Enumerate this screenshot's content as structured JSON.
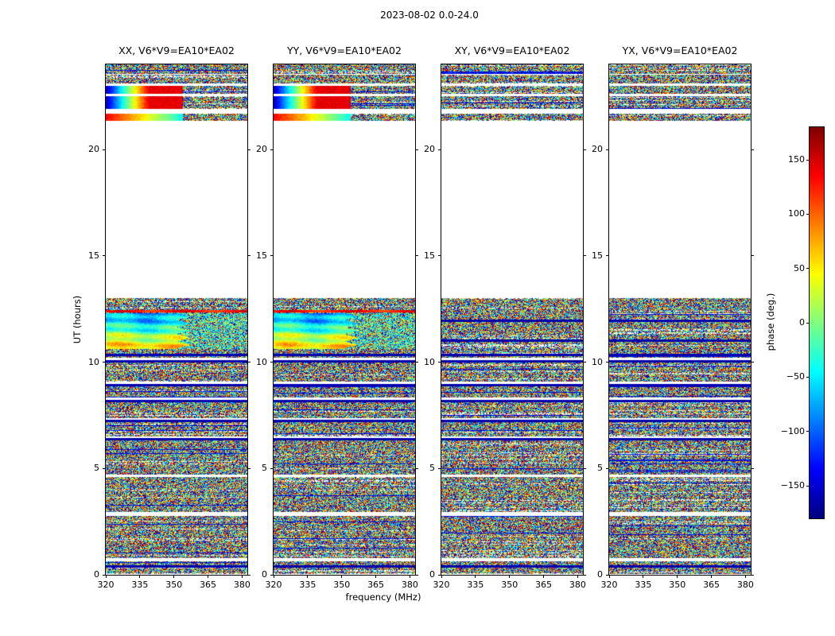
{
  "title": "2023-08-02 0.0-24.0",
  "xlabel": "frequency (MHz)",
  "ylabel": "UT (hours)",
  "panels": [
    {
      "title": "XX, V6*V9=EA10*EA02"
    },
    {
      "title": "YY, V6*V9=EA10*EA02"
    },
    {
      "title": "XY, V6*V9=EA10*EA02"
    },
    {
      "title": "YX, V6*V9=EA10*EA02"
    }
  ],
  "x_ticks": [
    320,
    335,
    350,
    365,
    380
  ],
  "y_ticks": [
    0,
    5,
    10,
    15,
    20
  ],
  "colorbar": {
    "label": "phase (deg.)",
    "ticks": [
      150,
      100,
      50,
      0,
      -50,
      -100,
      -150
    ],
    "vmin": -180,
    "vmax": 180
  },
  "chart_data": {
    "type": "heatmap",
    "title": "2023-08-02 0.0-24.0",
    "xlabel": "frequency (MHz)",
    "ylabel": "UT (hours)",
    "x_range_mhz": [
      320,
      382.3
    ],
    "y_range_hours": [
      0,
      24
    ],
    "value_label": "phase (deg.)",
    "value_range_deg": [
      -180,
      180
    ],
    "colormap": "jet",
    "legend_position": "right-colorbar",
    "panel_polarizations": [
      "XX",
      "YY",
      "XY",
      "YX"
    ],
    "baseline": "V6*V9=EA10*EA02",
    "noise_bands_hours": [
      [
        0.05,
        0.65
      ],
      [
        0.8,
        2.75
      ],
      [
        2.95,
        4.6
      ],
      [
        4.72,
        6.42
      ],
      [
        6.52,
        7.28
      ],
      [
        7.38,
        8.2
      ],
      [
        8.32,
        8.98
      ],
      [
        9.08,
        10.08
      ],
      [
        10.2,
        13.0
      ],
      [
        21.35,
        21.68
      ],
      [
        21.9,
        22.5
      ],
      [
        22.6,
        23.0
      ],
      [
        23.1,
        23.5
      ],
      [
        23.55,
        24.0
      ]
    ],
    "blank_gaps_hours": [
      [
        0.65,
        0.8
      ],
      [
        2.75,
        2.95
      ],
      [
        13.0,
        21.35
      ]
    ],
    "dark_lines_hours": [
      0.4,
      6.38,
      7.24,
      8.16,
      8.93,
      10.03,
      10.35,
      11.0,
      11.95
    ],
    "smooth_blob_hours": [
      10.6,
      12.3
    ],
    "red_stripe_hours": [
      12.32,
      12.44
    ],
    "gradient_bands": [
      {
        "t": [
          22.6,
          23.0
        ],
        "kind": "blue_to_red"
      },
      {
        "t": [
          21.9,
          22.5
        ],
        "kind": "blue_to_red"
      },
      {
        "t": [
          21.35,
          21.68
        ],
        "kind": "red_to_cyan"
      }
    ],
    "smooth_structure_panels": [
      0,
      1
    ]
  }
}
